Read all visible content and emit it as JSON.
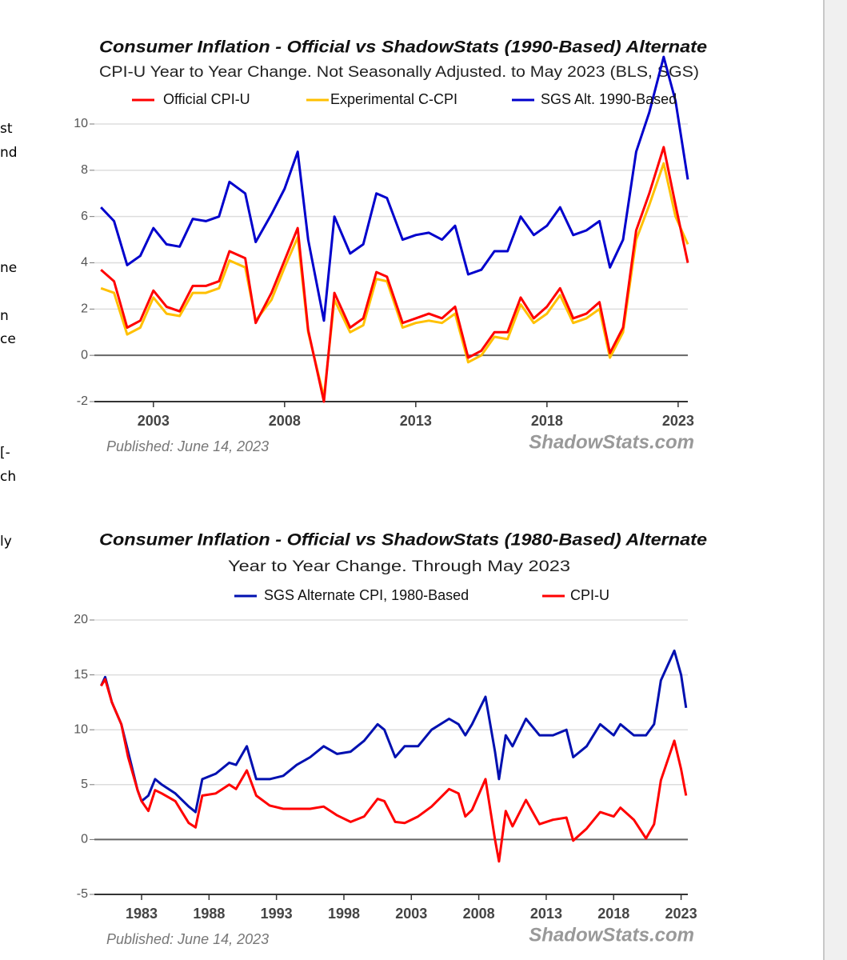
{
  "chart_data": [
    {
      "type": "line",
      "title": "Consumer Inflation - Official vs ShadowStats (1990-Based) Alternate",
      "subtitle": "CPI-U Year to Year Change. Not Seasonally Adjusted. to May 2023  (BLS, SGS)",
      "x": [
        2001.0,
        2001.5,
        2002.0,
        2002.5,
        2003.0,
        2003.5,
        2004.0,
        2004.5,
        2005.0,
        2005.5,
        2005.9,
        2006.5,
        2006.9,
        2007.5,
        2008.0,
        2008.5,
        2008.9,
        2009.5,
        2009.9,
        2010.5,
        2011.0,
        2011.5,
        2011.9,
        2012.5,
        2013.0,
        2013.5,
        2014.0,
        2014.5,
        2015.0,
        2015.5,
        2016.0,
        2016.5,
        2017.0,
        2017.5,
        2018.0,
        2018.5,
        2019.0,
        2019.5,
        2020.0,
        2020.4,
        2020.9,
        2021.4,
        2021.9,
        2022.45,
        2022.9,
        2023.37
      ],
      "series": [
        {
          "name": "Experimental C-CPI",
          "color": "#ffc000",
          "values": [
            2.9,
            2.7,
            0.9,
            1.2,
            2.5,
            1.8,
            1.7,
            2.7,
            2.7,
            2.9,
            4.1,
            3.8,
            1.5,
            2.4,
            3.8,
            5.1,
            1.0,
            -1.8,
            2.4,
            1.0,
            1.3,
            3.3,
            3.2,
            1.2,
            1.4,
            1.5,
            1.4,
            1.8,
            -0.3,
            0.0,
            0.8,
            0.7,
            2.2,
            1.4,
            1.8,
            2.6,
            1.4,
            1.6,
            2.0,
            -0.1,
            1.0,
            5.0,
            6.5,
            8.3,
            6.0,
            4.8
          ]
        },
        {
          "name": "Official CPI-U",
          "color": "#ff0000",
          "values": [
            3.7,
            3.2,
            1.2,
            1.5,
            2.8,
            2.1,
            1.9,
            3.0,
            3.0,
            3.2,
            4.5,
            4.2,
            1.4,
            2.7,
            4.1,
            5.5,
            1.1,
            -2.0,
            2.7,
            1.2,
            1.6,
            3.6,
            3.4,
            1.4,
            1.6,
            1.8,
            1.6,
            2.1,
            -0.1,
            0.2,
            1.0,
            1.0,
            2.5,
            1.6,
            2.1,
            2.9,
            1.6,
            1.8,
            2.3,
            0.1,
            1.2,
            5.4,
            7.0,
            9.0,
            6.5,
            4.0
          ]
        },
        {
          "name": "SGS  Alt. 1990-Based",
          "color": "#0000cc",
          "values": [
            6.4,
            5.8,
            3.9,
            4.3,
            5.5,
            4.8,
            4.7,
            5.9,
            5.8,
            6.0,
            7.5,
            7.0,
            4.9,
            6.1,
            7.2,
            8.8,
            5.0,
            1.5,
            6.0,
            4.4,
            4.8,
            7.0,
            6.8,
            5.0,
            5.2,
            5.3,
            5.0,
            5.6,
            3.5,
            3.7,
            4.5,
            4.5,
            6.0,
            5.2,
            5.6,
            6.4,
            5.2,
            5.4,
            5.8,
            3.8,
            5.0,
            8.8,
            10.5,
            12.9,
            11.0,
            7.6
          ]
        }
      ],
      "xlim": [
        2000.75,
        2023.37
      ],
      "ylim": [
        -2,
        10
      ],
      "xticks": [
        2003,
        2008,
        2013,
        2018,
        2023
      ],
      "yticks": [
        -2,
        0,
        2,
        4,
        6,
        8,
        10
      ],
      "grid": true,
      "annotations": [
        "Published: June 14, 2023",
        "ShadowStats.com"
      ]
    },
    {
      "type": "line",
      "title": "Consumer Inflation - Official vs ShadowStats (1980-Based) Alternate",
      "subtitle": "Year to Year Change. Through May 2023",
      "x": [
        1980.0,
        1980.3,
        1980.8,
        1981.5,
        1982.0,
        1982.7,
        1983.0,
        1983.5,
        1984.0,
        1984.5,
        1985.5,
        1986.5,
        1987.0,
        1987.5,
        1988.5,
        1989.5,
        1990.0,
        1990.8,
        1991.5,
        1992.5,
        1993.5,
        1994.5,
        1995.5,
        1996.5,
        1997.5,
        1998.5,
        1999.5,
        2000.5,
        2001.0,
        2001.8,
        2002.5,
        2003.5,
        2004.5,
        2005.8,
        2006.5,
        2007.0,
        2007.5,
        2008.5,
        2009.2,
        2009.5,
        2010.0,
        2010.5,
        2011.5,
        2012.5,
        2013.5,
        2014.5,
        2015.0,
        2016.0,
        2017.0,
        2018.0,
        2018.5,
        2019.5,
        2020.4,
        2021.0,
        2021.5,
        2022.5,
        2023.0,
        2023.37
      ],
      "series": [
        {
          "name": "SGS Alternate CPI, 1980-Based",
          "color": "#0010b0",
          "values": [
            14.0,
            14.8,
            12.5,
            10.5,
            8.0,
            4.5,
            3.5,
            4.0,
            5.5,
            5.0,
            4.2,
            3.0,
            2.5,
            5.5,
            6.0,
            7.0,
            6.8,
            8.5,
            5.5,
            5.5,
            5.8,
            6.8,
            7.5,
            8.5,
            7.8,
            8.0,
            9.0,
            10.5,
            10.0,
            7.5,
            8.5,
            8.5,
            10.0,
            11.0,
            10.5,
            9.5,
            10.5,
            13.0,
            8.0,
            5.5,
            9.5,
            8.5,
            11.0,
            9.5,
            9.5,
            10.0,
            7.5,
            8.5,
            10.5,
            9.5,
            10.5,
            9.5,
            9.5,
            10.5,
            14.5,
            17.2,
            15.0,
            12.0
          ]
        },
        {
          "name": "CPI-U",
          "color": "#ff0000",
          "values": [
            14.0,
            14.6,
            12.5,
            10.5,
            7.5,
            4.5,
            3.5,
            2.6,
            4.5,
            4.2,
            3.5,
            1.5,
            1.1,
            4.0,
            4.2,
            5.0,
            4.6,
            6.3,
            4.0,
            3.1,
            2.8,
            2.8,
            2.8,
            3.0,
            2.2,
            1.6,
            2.1,
            3.7,
            3.5,
            1.6,
            1.5,
            2.1,
            3.0,
            4.6,
            4.2,
            2.1,
            2.7,
            5.5,
            0.0,
            -2.0,
            2.6,
            1.2,
            3.6,
            1.4,
            1.8,
            2.0,
            -0.1,
            1.0,
            2.5,
            2.1,
            2.9,
            1.8,
            0.1,
            1.4,
            5.4,
            9.0,
            6.4,
            4.0
          ]
        }
      ],
      "xlim": [
        1979.5,
        2023.5
      ],
      "ylim": [
        -5,
        20
      ],
      "xticks": [
        1983,
        1988,
        1993,
        1998,
        2003,
        2008,
        2013,
        2018,
        2023
      ],
      "yticks": [
        -5,
        0,
        5,
        10,
        15,
        20
      ],
      "grid": true,
      "annotations": [
        "Published: June 14, 2023",
        "ShadowStats.com"
      ]
    }
  ],
  "side_text": [
    "st",
    "nd",
    "ne",
    "n",
    "ce",
    "[-",
    "ch",
    "ly"
  ]
}
